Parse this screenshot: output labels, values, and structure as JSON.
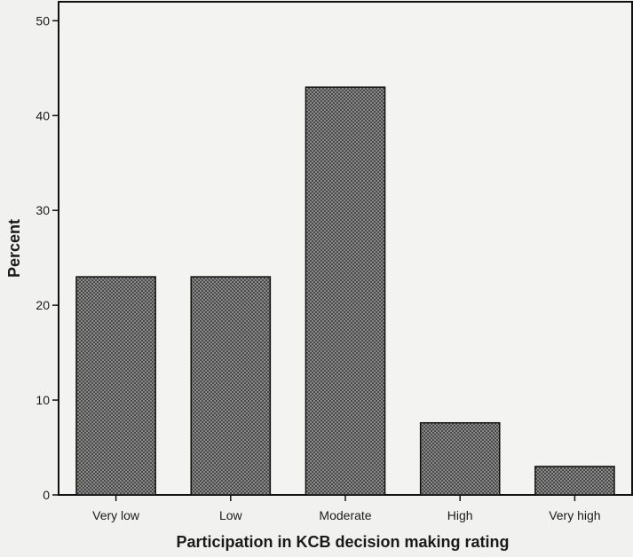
{
  "chart_data": {
    "type": "bar",
    "categories": [
      "Very low",
      "Low",
      "Moderate",
      "High",
      "Very high"
    ],
    "values": [
      23,
      23,
      43,
      7.6,
      3
    ],
    "xlabel": "Participation in KCB decision making rating",
    "ylabel": "Percent",
    "ylim": [
      0,
      52
    ],
    "yticks": [
      0,
      10,
      20,
      30,
      40,
      50
    ],
    "grid": false,
    "legend": "none",
    "bar_fill": "#8f8f8f",
    "bar_pattern": "crosshatch",
    "bar_stroke": "#111111"
  }
}
